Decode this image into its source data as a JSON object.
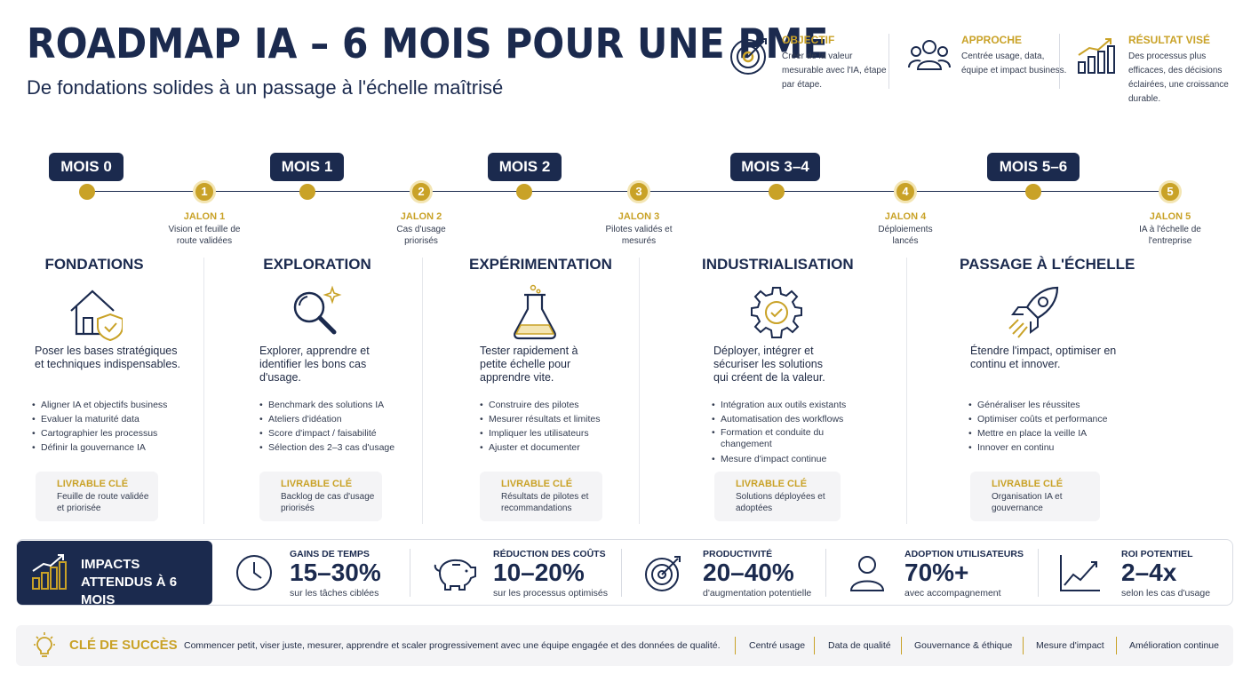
{
  "header": {
    "title": "ROADMAP IA – 6 MOIS POUR UNE PME",
    "subtitle": "De fondations solides à un passage à l'échelle maîtrisé",
    "cards": [
      {
        "title": "OBJECTIF",
        "text": "Créer de la valeur mesurable avec l'IA, étape par étape.",
        "icon": "target-icon"
      },
      {
        "title": "APPROCHE",
        "text": "Centrée usage, data, équipe et impact business.",
        "icon": "team-icon"
      },
      {
        "title": "RÉSULTAT VISÉ",
        "text": "Des processus plus efficaces, des décisions éclairées, une croissance durable.",
        "icon": "growth-chart-icon"
      }
    ]
  },
  "timeline": {
    "months": [
      "MOIS 0",
      "MOIS 1",
      "MOIS 2",
      "MOIS 3–4",
      "MOIS 5–6"
    ],
    "milestones": [
      {
        "num": "1",
        "title": "JALON 1",
        "desc": "Vision et feuille de route validées"
      },
      {
        "num": "2",
        "title": "JALON 2",
        "desc": "Cas d'usage priorisés"
      },
      {
        "num": "3",
        "title": "JALON 3",
        "desc": "Pilotes validés et mesurés"
      },
      {
        "num": "4",
        "title": "JALON 4",
        "desc": "Déploiements lancés"
      },
      {
        "num": "5",
        "title": "JALON 5",
        "desc": "IA à l'échelle de l'entreprise"
      }
    ]
  },
  "phases": [
    {
      "title": "FONDATIONS",
      "icon": "house-shield-icon",
      "desc": "Poser les bases stratégiques et techniques indispensables.",
      "items": [
        "Aligner IA et objectifs business",
        "Evaluer la maturité data",
        "Cartographier les processus",
        "Définir la gouvernance IA"
      ],
      "deliverable_title": "LIVRABLE CLÉ",
      "deliverable": "Feuille de route validée et priorisée"
    },
    {
      "title": "EXPLORATION",
      "icon": "magnifier-sparkle-icon",
      "desc": "Explorer, apprendre et identifier les bons cas d'usage.",
      "items": [
        "Benchmark des solutions IA",
        "Ateliers d'idéation",
        "Score d'impact / faisabilité",
        "Sélection des 2–3 cas d'usage"
      ],
      "deliverable_title": "LIVRABLE CLÉ",
      "deliverable": "Backlog de cas d'usage priorisés"
    },
    {
      "title": "EXPÉRIMENTATION",
      "icon": "flask-icon",
      "desc": "Tester rapidement à petite échelle pour apprendre vite.",
      "items": [
        "Construire des pilotes",
        "Mesurer résultats et limites",
        "Impliquer les utilisateurs",
        "Ajuster et documenter"
      ],
      "deliverable_title": "LIVRABLE CLÉ",
      "deliverable": "Résultats de pilotes et recommandations"
    },
    {
      "title": "INDUSTRIALISATION",
      "icon": "gear-check-icon",
      "desc": "Déployer, intégrer et sécuriser les solutions qui créent de la valeur.",
      "items": [
        "Intégration aux outils existants",
        "Automatisation des workflows",
        "Formation et conduite du changement",
        "Mesure d'impact continue"
      ],
      "deliverable_title": "LIVRABLE CLÉ",
      "deliverable": "Solutions déployées et adoptées"
    },
    {
      "title": "PASSAGE À L'ÉCHELLE",
      "icon": "rocket-icon",
      "desc": "Étendre l'impact, optimiser en continu et innover.",
      "items": [
        "Généraliser les réussites",
        "Optimiser coûts et performance",
        "Mettre en place la veille IA",
        "Innover en continu"
      ],
      "deliverable_title": "LIVRABLE CLÉ",
      "deliverable": "Organisation IA et gouvernance"
    }
  ],
  "impacts": {
    "title": "IMPACTS ATTENDUS À 6 MOIS",
    "items": [
      {
        "title": "GAINS DE TEMPS",
        "value": "15–30%",
        "desc": "sur les tâches ciblées",
        "icon": "clock-icon"
      },
      {
        "title": "RÉDUCTION DES COÛTS",
        "value": "10–20%",
        "desc": "sur les processus optimisés",
        "icon": "piggy-bank-icon"
      },
      {
        "title": "PRODUCTIVITÉ",
        "value": "20–40%",
        "desc": "d'augmentation potentielle",
        "icon": "target-icon"
      },
      {
        "title": "ADOPTION UTILISATEURS",
        "value": "70%+",
        "desc": "avec accompagnement",
        "icon": "user-icon"
      },
      {
        "title": "ROI POTENTIEL",
        "value": "2–4x",
        "desc": "selon les cas d'usage",
        "icon": "trend-up-icon"
      }
    ]
  },
  "footer": {
    "title": "CLÉ DE SUCCÈS",
    "text": "Commencer petit, viser juste, mesurer, apprendre et scaler progressivement avec une équipe engagée et des données de qualité.",
    "tags": [
      "Centré usage",
      "Data de qualité",
      "Gouvernance & éthique",
      "Mesure d'impact",
      "Amélioration continue"
    ]
  },
  "colors": {
    "navy": "#1b2a4e",
    "gold": "#c9a227",
    "panel": "#f4f4f6"
  }
}
